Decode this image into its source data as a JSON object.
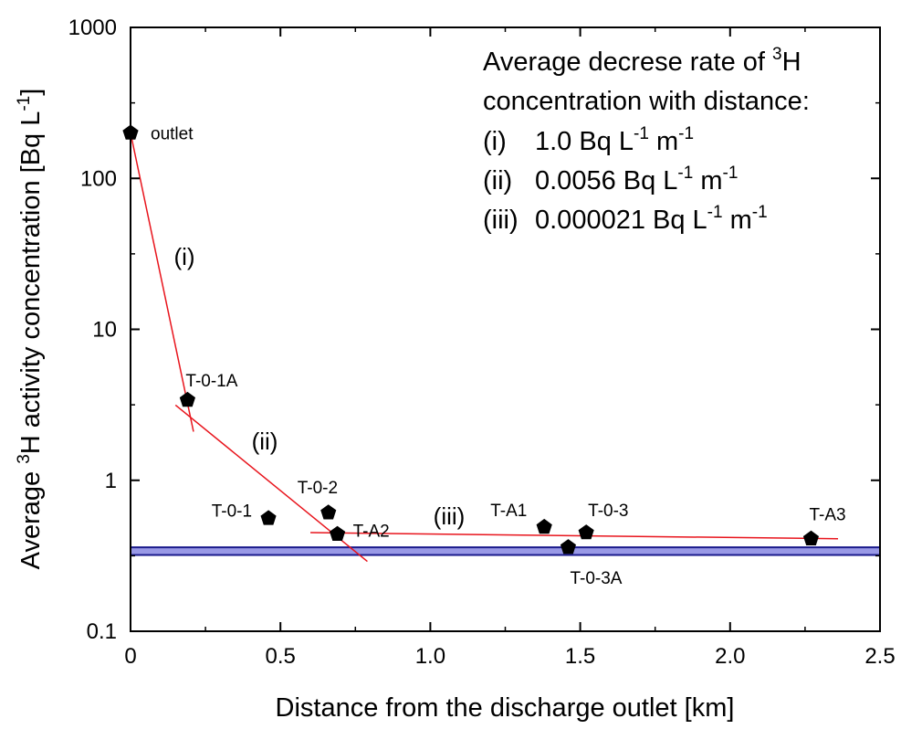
{
  "chart_data": {
    "type": "scatter",
    "xlabel": "Distance from the discharge outlet [km]",
    "ylabel": {
      "prefix": "Average ",
      "sup": "3",
      "mid": "H activity concentration [Bq L",
      "sup2": "-1",
      "suffix": "]"
    },
    "x_range": [
      0,
      2.5
    ],
    "y_range": [
      0.1,
      1000
    ],
    "y_scale": "log",
    "x_ticks": [
      "0",
      "0.5",
      "1.0",
      "1.5",
      "2.0",
      "2.5"
    ],
    "x_tick_values": [
      0,
      0.5,
      1.0,
      1.5,
      2.0,
      2.5
    ],
    "y_ticks": [
      "0.1",
      "1",
      "10",
      "100",
      "1000"
    ],
    "y_tick_values": [
      0.1,
      1,
      10,
      100,
      1000
    ],
    "points": [
      {
        "label": "outlet",
        "x": 0.0,
        "y": 200
      },
      {
        "label": "T-0-1A",
        "x": 0.19,
        "y": 3.4
      },
      {
        "label": "T-0-1",
        "x": 0.46,
        "y": 0.56
      },
      {
        "label": "T-0-2",
        "x": 0.66,
        "y": 0.61
      },
      {
        "label": "T-A2",
        "x": 0.69,
        "y": 0.44
      },
      {
        "label": "T-A1",
        "x": 1.38,
        "y": 0.49
      },
      {
        "label": "T-0-3A",
        "x": 1.46,
        "y": 0.36
      },
      {
        "label": "T-0-3",
        "x": 1.52,
        "y": 0.45
      },
      {
        "label": "T-A3",
        "x": 2.27,
        "y": 0.41
      }
    ],
    "fit_lines": [
      {
        "label": "(i)",
        "x": [
          0.0,
          0.21
        ],
        "y": [
          200,
          2.1
        ]
      },
      {
        "label": "(ii)",
        "x": [
          0.15,
          0.79
        ],
        "y": [
          3.15,
          0.29
        ]
      },
      {
        "label": "(iii)",
        "x": [
          0.6,
          2.36
        ],
        "y": [
          0.45,
          0.41
        ]
      }
    ],
    "fit_line_color": "#e8141c",
    "point_color": "#000000",
    "background_band": {
      "y_min": 0.32,
      "y_max": 0.36,
      "fill": "#9999e6",
      "edge": "#1a1a8c"
    },
    "legend": {
      "placement": "top-right",
      "line1": {
        "prefix": "Average decrese rate of ",
        "sup": "3",
        "suffix": "H"
      },
      "line2": "concentration with distance:",
      "rates": [
        {
          "tag": "(i)",
          "value": "1.0 Bq L",
          "sup1": "-1",
          "unit": " m",
          "sup2": "-1"
        },
        {
          "tag": "(ii)",
          "value": "0.0056 Bq L",
          "sup1": "-1",
          "unit": " m",
          "sup2": "-1"
        },
        {
          "tag": "(iii)",
          "value": "0.000021 Bq L",
          "sup1": "-1",
          "unit": " m",
          "sup2": "-1"
        }
      ]
    }
  }
}
